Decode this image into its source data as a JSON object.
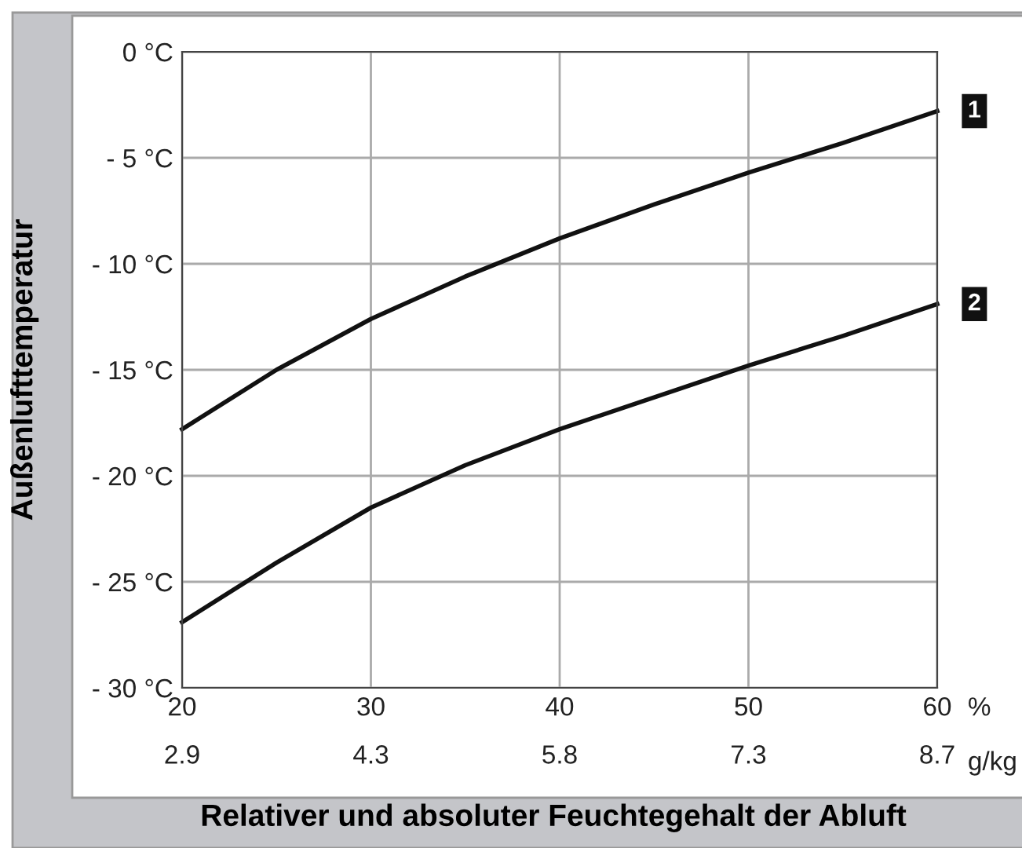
{
  "chart_data": {
    "type": "line",
    "xlabel": "Relativer und absoluter Feuchtegehalt der Abluft",
    "ylabel": "Außenlufttemperatur",
    "x": [
      20,
      25,
      30,
      35,
      40,
      45,
      50,
      55,
      60
    ],
    "series": [
      {
        "name": "1",
        "color": "#111111",
        "values": [
          -17.8,
          -15.0,
          -12.6,
          -10.6,
          -8.8,
          -7.2,
          -5.7,
          -4.3,
          -2.8
        ]
      },
      {
        "name": "2",
        "color": "#111111",
        "values": [
          -26.9,
          -24.1,
          -21.5,
          -19.5,
          -17.8,
          -16.3,
          -14.8,
          -13.4,
          -11.9
        ]
      }
    ],
    "xlim": [
      20,
      60
    ],
    "xticks": [
      20,
      30,
      40,
      50,
      60
    ],
    "x2lim": [
      2.9,
      8.7
    ],
    "x2ticks": [
      2.9,
      {
        "value": 4.35,
        "label": "4.3"
      },
      5.8,
      {
        "value": 7.25,
        "label": "7.3"
      },
      8.7
    ],
    "ylim": [
      -30,
      0
    ],
    "yticks": [
      {
        "value": 0,
        "label": "0 °C"
      },
      {
        "value": -5,
        "label": "- 5 °C"
      },
      {
        "value": -10,
        "label": "- 10 °C"
      },
      {
        "value": -15,
        "label": "- 15 °C"
      },
      {
        "value": -20,
        "label": "- 20 °C"
      },
      {
        "value": -25,
        "label": "- 25 °C"
      },
      {
        "value": -30,
        "label": "- 30 °C"
      }
    ],
    "annotations": [
      "%",
      "g/kg"
    ],
    "grid": true,
    "legend": false,
    "marker": "none",
    "line_style": "solid"
  }
}
